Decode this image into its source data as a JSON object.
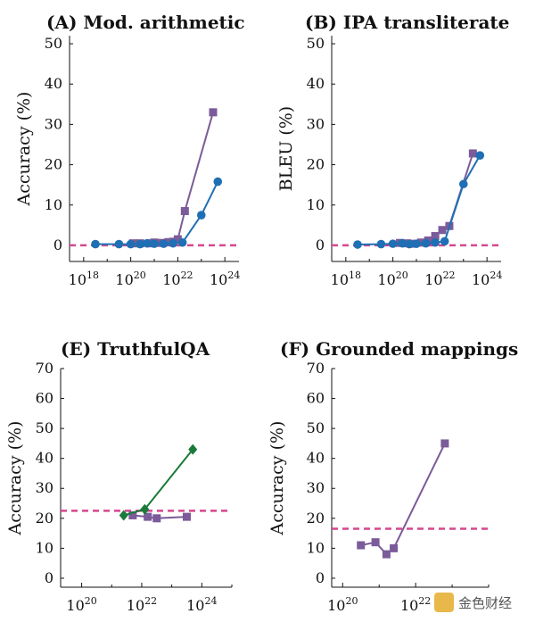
{
  "chart_data": [
    {
      "type": "line",
      "title": "(A) Mod. arithmetic",
      "ylabel": "Accuracy (%)",
      "xscale": "log",
      "xlim_exp": [
        17.4,
        24.6
      ],
      "ylim": [
        -4,
        52
      ],
      "yticks": [
        0,
        10,
        20,
        30,
        40,
        50
      ],
      "xticks": [
        "10^18",
        "10^20",
        "10^22",
        "10^24"
      ],
      "baseline": 0,
      "series": [
        {
          "color": "#7b5b99",
          "marker": "square",
          "x": [
            20.1,
            20.4,
            20.8,
            21.0,
            21.3,
            21.6,
            21.8,
            22.0,
            22.3,
            23.5
          ],
          "y": [
            0.5,
            0.5,
            0.5,
            0.7,
            0.6,
            0.8,
            0.9,
            1.5,
            8.5,
            33.0
          ]
        },
        {
          "color": "#1f6fb4",
          "marker": "circle",
          "x": [
            18.5,
            19.5,
            20.0,
            20.4,
            20.7,
            21.0,
            21.4,
            21.8,
            22.2,
            23.0,
            23.7
          ],
          "y": [
            0.3,
            0.3,
            0.3,
            0.3,
            0.5,
            0.4,
            0.4,
            0.5,
            0.7,
            7.5,
            15.8
          ]
        }
      ]
    },
    {
      "type": "line",
      "title": "(B) IPA transliterate",
      "ylabel": "BLEU (%)",
      "xscale": "log",
      "xlim_exp": [
        17.4,
        24.6
      ],
      "ylim": [
        -4,
        52
      ],
      "yticks": [
        0,
        10,
        20,
        30,
        40,
        50
      ],
      "xticks": [
        "10^18",
        "10^20",
        "10^22",
        "10^24"
      ],
      "baseline": 0,
      "series": [
        {
          "color": "#7b5b99",
          "marker": "square",
          "x": [
            20.3,
            20.6,
            20.9,
            21.2,
            21.5,
            21.8,
            22.1,
            22.4,
            23.4
          ],
          "y": [
            0.6,
            0.5,
            0.4,
            0.7,
            1.2,
            2.3,
            3.8,
            4.8,
            22.8
          ]
        },
        {
          "color": "#1f6fb4",
          "marker": "circle",
          "x": [
            18.5,
            19.5,
            20.0,
            20.4,
            20.7,
            21.0,
            21.4,
            21.8,
            22.2,
            23.0,
            23.7
          ],
          "y": [
            0.2,
            0.3,
            0.4,
            0.5,
            0.3,
            0.4,
            0.5,
            0.7,
            1.0,
            15.2,
            22.3
          ]
        }
      ]
    },
    {
      "type": "line",
      "title": "(E) TruthfulQA",
      "ylabel": "Accuracy (%)",
      "xscale": "log",
      "xlim_exp": [
        19.3,
        25.0
      ],
      "ylim": [
        -3,
        70
      ],
      "yticks": [
        0,
        10,
        20,
        30,
        40,
        50,
        60,
        70
      ],
      "xticks": [
        "10^20",
        "10^22",
        "10^24"
      ],
      "baseline": 22.5,
      "series": [
        {
          "color": "#7b5b99",
          "marker": "square",
          "x": [
            21.7,
            22.2,
            22.5,
            23.5
          ],
          "y": [
            21.0,
            20.5,
            20.0,
            20.5
          ]
        },
        {
          "color": "#1a7a3a",
          "marker": "diamond",
          "x": [
            21.4,
            22.1,
            23.7
          ],
          "y": [
            21.0,
            23.0,
            43.0
          ]
        }
      ]
    },
    {
      "type": "line",
      "title": "(F) Grounded mappings",
      "ylabel": "Accuracy (%)",
      "xscale": "log",
      "xlim_exp": [
        19.7,
        24.0
      ],
      "ylim": [
        -3,
        70
      ],
      "yticks": [
        0,
        10,
        20,
        30,
        40,
        50,
        60,
        70
      ],
      "xticks": [
        "10^20",
        "10^22"
      ],
      "baseline": 16.5,
      "series": [
        {
          "color": "#7b5b99",
          "marker": "square",
          "x": [
            20.5,
            20.9,
            21.2,
            21.4,
            22.8
          ],
          "y": [
            11.0,
            12.0,
            8.0,
            10.0,
            45.0
          ]
        }
      ]
    }
  ],
  "watermark": "金色财经",
  "colors": {
    "baseline": "#d6468e",
    "axis": "#111111"
  }
}
